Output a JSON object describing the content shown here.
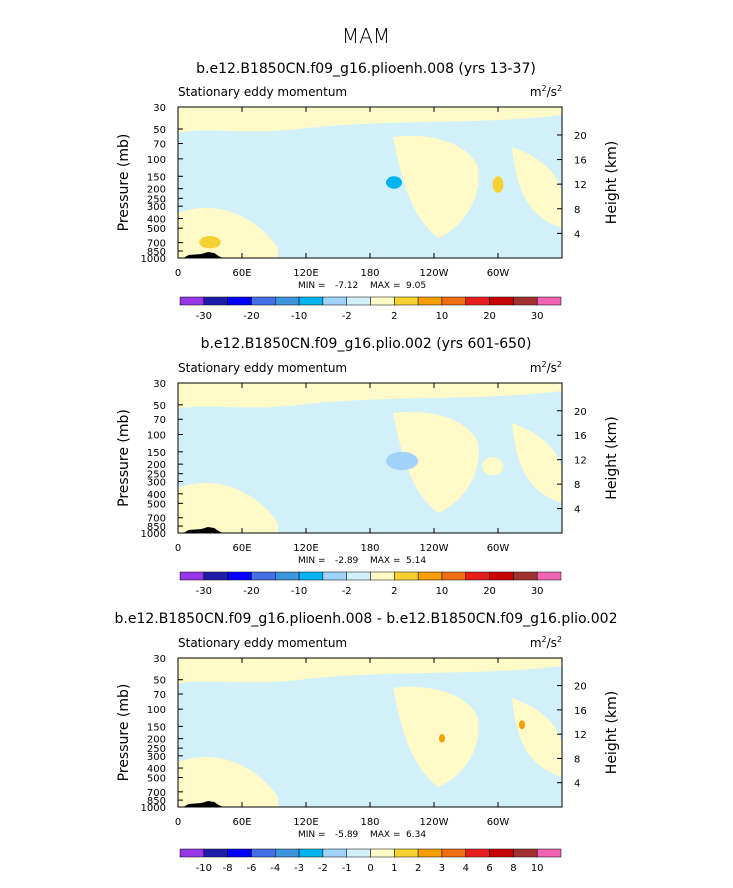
{
  "main_title": "MAM",
  "chart_data": [
    {
      "type": "heatmap",
      "title": "b.e12.B1850CN.f09_g16.plioenh.008 (yrs 13-37)",
      "subtitle_left": "Stationary eddy momentum",
      "units": "m²/s²",
      "units_base": "m",
      "units_sup1": "2",
      "units_mid": "/s",
      "units_sup2": "2",
      "ylabel_left": "Pressure (mb)",
      "ylabel_right": "Height (km)",
      "x_ticks": [
        "0",
        "60E",
        "120E",
        "180",
        "120W",
        "60W"
      ],
      "x_tick_values": [
        0,
        60,
        120,
        180,
        240,
        300
      ],
      "xlim": [
        0,
        360
      ],
      "y_ticks": [
        "30",
        "50",
        "70",
        "100",
        "150",
        "200",
        "250",
        "300",
        "400",
        "500",
        "700",
        "850",
        "1000"
      ],
      "y_tick_values": [
        30,
        50,
        70,
        100,
        150,
        200,
        250,
        300,
        400,
        500,
        700,
        850,
        1000
      ],
      "ylim": [
        30,
        1000
      ],
      "height_ticks": [
        "20",
        "16",
        "12",
        "8",
        "4"
      ],
      "height_tick_values": [
        20,
        16,
        12,
        8,
        4
      ],
      "min_label": "MIN =",
      "min": "-7.12",
      "max_label": "MAX =",
      "max": "9.05",
      "colorbar_labels": [
        "-30",
        "-20",
        "-10",
        "-2",
        "2",
        "10",
        "20",
        "30"
      ],
      "colorbar_levels": [
        -40,
        -30,
        -25,
        -20,
        -15,
        -10,
        -5,
        -2,
        2,
        5,
        10,
        15,
        20,
        25,
        30,
        40
      ],
      "features": [
        {
          "lon": [
            195,
            210
          ],
          "p": [
            150,
            200
          ],
          "value": -6
        },
        {
          "lon": [
            295,
            305
          ],
          "p": [
            150,
            220
          ],
          "value": 6
        },
        {
          "lon": [
            20,
            40
          ],
          "p": [
            600,
            800
          ],
          "value": 6
        }
      ]
    },
    {
      "type": "heatmap",
      "title": "b.e12.B1850CN.f09_g16.plio.002 (yrs 601-650)",
      "subtitle_left": "Stationary eddy momentum",
      "units": "m²/s²",
      "units_base": "m",
      "units_sup1": "2",
      "units_mid": "/s",
      "units_sup2": "2",
      "ylabel_left": "Pressure (mb)",
      "ylabel_right": "Height (km)",
      "x_ticks": [
        "0",
        "60E",
        "120E",
        "180",
        "120W",
        "60W"
      ],
      "x_tick_values": [
        0,
        60,
        120,
        180,
        240,
        300
      ],
      "xlim": [
        0,
        360
      ],
      "y_ticks": [
        "30",
        "50",
        "70",
        "100",
        "150",
        "200",
        "250",
        "300",
        "400",
        "500",
        "700",
        "850",
        "1000"
      ],
      "y_tick_values": [
        30,
        50,
        70,
        100,
        150,
        200,
        250,
        300,
        400,
        500,
        700,
        850,
        1000
      ],
      "ylim": [
        30,
        1000
      ],
      "height_ticks": [
        "20",
        "16",
        "12",
        "8",
        "4"
      ],
      "height_tick_values": [
        20,
        16,
        12,
        8,
        4
      ],
      "min_label": "MIN =",
      "min": "-2.89",
      "max_label": "MAX =",
      "max": "5.14",
      "colorbar_labels": [
        "-30",
        "-20",
        "-10",
        "-2",
        "2",
        "10",
        "20",
        "30"
      ],
      "colorbar_levels": [
        -40,
        -30,
        -25,
        -20,
        -15,
        -10,
        -5,
        -2,
        2,
        5,
        10,
        15,
        20,
        25,
        30,
        40
      ],
      "features": [
        {
          "lon": [
            195,
            225
          ],
          "p": [
            150,
            230
          ],
          "value": -4
        },
        {
          "lon": [
            285,
            305
          ],
          "p": [
            170,
            260
          ],
          "value": 4
        },
        {
          "lon": [
            20,
            40
          ],
          "p": [
            600,
            800
          ],
          "value": 4
        }
      ]
    },
    {
      "type": "heatmap",
      "title": "b.e12.B1850CN.f09_g16.plioenh.008 - b.e12.B1850CN.f09_g16.plio.002",
      "subtitle_left": "Stationary eddy momentum",
      "units": "m²/s²",
      "units_base": "m",
      "units_sup1": "2",
      "units_mid": "/s",
      "units_sup2": "2",
      "ylabel_left": "Pressure (mb)",
      "ylabel_right": "Height (km)",
      "x_ticks": [
        "0",
        "60E",
        "120E",
        "180",
        "120W",
        "60W"
      ],
      "x_tick_values": [
        0,
        60,
        120,
        180,
        240,
        300
      ],
      "xlim": [
        0,
        360
      ],
      "y_ticks": [
        "30",
        "50",
        "70",
        "100",
        "150",
        "200",
        "250",
        "300",
        "400",
        "500",
        "700",
        "850",
        "1000"
      ],
      "y_tick_values": [
        30,
        50,
        70,
        100,
        150,
        200,
        250,
        300,
        400,
        500,
        700,
        850,
        1000
      ],
      "ylim": [
        30,
        1000
      ],
      "height_ticks": [
        "20",
        "16",
        "12",
        "8",
        "4"
      ],
      "height_tick_values": [
        20,
        16,
        12,
        8,
        4
      ],
      "min_label": "MIN =",
      "min": "-5.89",
      "max_label": "MAX =",
      "max": "6.34",
      "colorbar_labels": [
        "-10",
        "-8",
        "-6",
        "-4",
        "-3",
        "-2",
        "-1",
        "0",
        "1",
        "2",
        "3",
        "4",
        "6",
        "8",
        "10"
      ],
      "colorbar_levels": [
        -12,
        -10,
        -8,
        -6,
        -4,
        -3,
        -2,
        -1,
        0,
        1,
        2,
        3,
        4,
        6,
        8,
        10,
        12
      ],
      "features": [
        {
          "lon": [
            245,
            250
          ],
          "p": [
            180,
            220
          ],
          "value": 2.5
        },
        {
          "lon": [
            320,
            325
          ],
          "p": [
            130,
            160
          ],
          "value": 2.5
        }
      ]
    }
  ],
  "colors": {
    "neutral_blue": "#d2f0fa",
    "neutral_yellow": "#fffac8",
    "colorbar_a": [
      "#9637e6",
      "#1e1eaa",
      "#0000ff",
      "#466ee6",
      "#3c96dc",
      "#00b4f0",
      "#a0d2fa",
      "#d2f0fa",
      "#fffac8",
      "#f5d232",
      "#f5a000",
      "#f06e14",
      "#e61e1e",
      "#c80000",
      "#a03232",
      "#f064b4"
    ],
    "colorbar_b": [
      "#9637e6",
      "#1e1eaa",
      "#0000ff",
      "#466ee6",
      "#3c96dc",
      "#00b4f0",
      "#a0d2fa",
      "#d2f0fa",
      "#fffac8",
      "#f5d232",
      "#f5a000",
      "#f06e14",
      "#e61e1e",
      "#c80000",
      "#a03232",
      "#f064b4"
    ],
    "topography": "#000000"
  }
}
